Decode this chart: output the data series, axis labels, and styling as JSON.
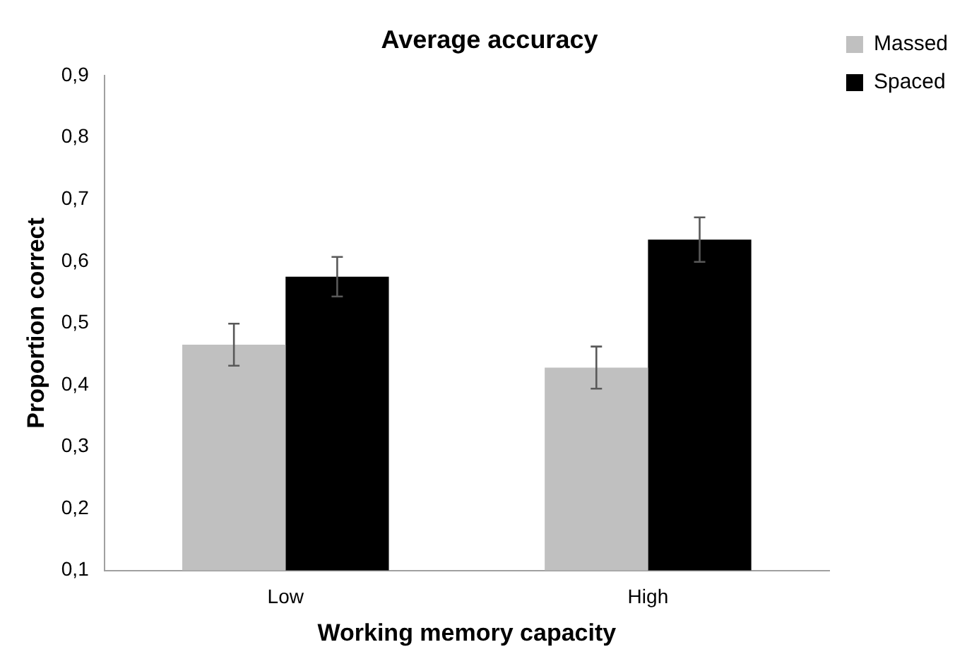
{
  "chart_data": {
    "type": "bar",
    "title": "Average accuracy",
    "xlabel": "Working memory capacity",
    "ylabel": "Proportion correct",
    "categories": [
      "Low",
      "High"
    ],
    "series": [
      {
        "name": "Massed",
        "color": "#c0c0c0",
        "values": [
          0.465,
          0.428
        ],
        "errors": [
          0.034,
          0.034
        ]
      },
      {
        "name": "Spaced",
        "color": "#000000",
        "values": [
          0.575,
          0.635
        ],
        "errors": [
          0.032,
          0.036
        ]
      }
    ],
    "ylim": [
      0.1,
      0.9
    ],
    "yticks": [
      {
        "value": 0.1,
        "label": "0,1"
      },
      {
        "value": 0.2,
        "label": "0,2"
      },
      {
        "value": 0.3,
        "label": "0,3"
      },
      {
        "value": 0.4,
        "label": "0,4"
      },
      {
        "value": 0.5,
        "label": "0,5"
      },
      {
        "value": 0.6,
        "label": "0,6"
      },
      {
        "value": 0.7,
        "label": "0,7"
      },
      {
        "value": 0.8,
        "label": "0,8"
      },
      {
        "value": 0.9,
        "label": "0,9"
      }
    ],
    "grid": false,
    "legend": "top right"
  }
}
